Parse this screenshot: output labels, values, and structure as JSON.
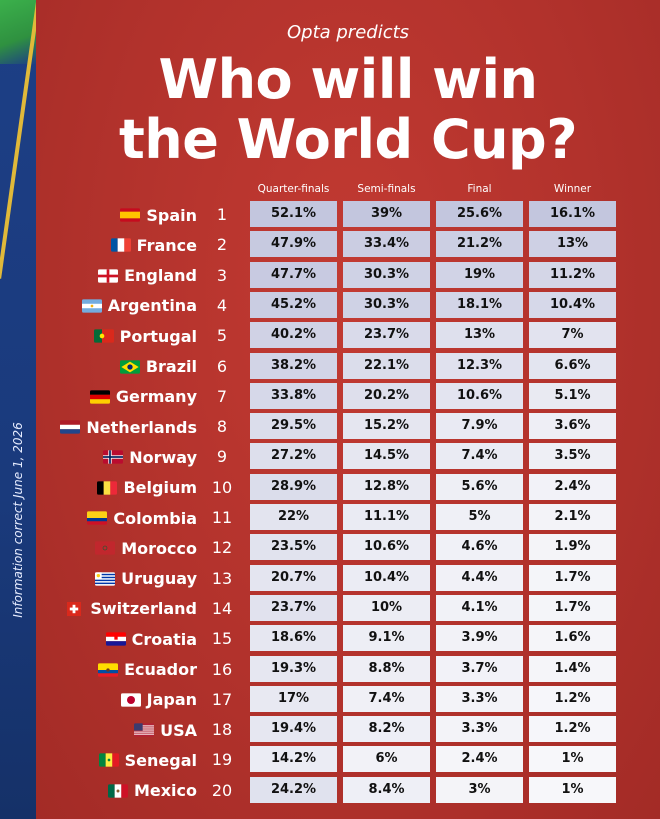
{
  "subtitle": "Opta predicts",
  "title_line1": "Who will win",
  "title_line2": "the World Cup?",
  "side_note": "Information correct June 1, 2026",
  "columns": [
    "Quarter-finals",
    "Semi-finals",
    "Final",
    "Winner"
  ],
  "colors": {
    "background": "#b8352f",
    "stripe": "#1d3f86",
    "text": "#ffffff"
  },
  "rows": [
    {
      "country": "Spain",
      "rank": "1",
      "flag": "spain-flag-icon",
      "values": [
        "52.1%",
        "39%",
        "25.6%",
        "16.1%"
      ]
    },
    {
      "country": "France",
      "rank": "2",
      "flag": "france-flag-icon",
      "values": [
        "47.9%",
        "33.4%",
        "21.2%",
        "13%"
      ]
    },
    {
      "country": "England",
      "rank": "3",
      "flag": "england-flag-icon",
      "values": [
        "47.7%",
        "30.3%",
        "19%",
        "11.2%"
      ]
    },
    {
      "country": "Argentina",
      "rank": "4",
      "flag": "argentina-flag-icon",
      "values": [
        "45.2%",
        "30.3%",
        "18.1%",
        "10.4%"
      ]
    },
    {
      "country": "Portugal",
      "rank": "5",
      "flag": "portugal-flag-icon",
      "values": [
        "40.2%",
        "23.7%",
        "13%",
        "7%"
      ]
    },
    {
      "country": "Brazil",
      "rank": "6",
      "flag": "brazil-flag-icon",
      "values": [
        "38.2%",
        "22.1%",
        "12.3%",
        "6.6%"
      ]
    },
    {
      "country": "Germany",
      "rank": "7",
      "flag": "germany-flag-icon",
      "values": [
        "33.8%",
        "20.2%",
        "10.6%",
        "5.1%"
      ]
    },
    {
      "country": "Netherlands",
      "rank": "8",
      "flag": "netherlands-flag-icon",
      "values": [
        "29.5%",
        "15.2%",
        "7.9%",
        "3.6%"
      ]
    },
    {
      "country": "Norway",
      "rank": "9",
      "flag": "norway-flag-icon",
      "values": [
        "27.2%",
        "14.5%",
        "7.4%",
        "3.5%"
      ]
    },
    {
      "country": "Belgium",
      "rank": "10",
      "flag": "belgium-flag-icon",
      "values": [
        "28.9%",
        "12.8%",
        "5.6%",
        "2.4%"
      ]
    },
    {
      "country": "Colombia",
      "rank": "11",
      "flag": "colombia-flag-icon",
      "values": [
        "22%",
        "11.1%",
        "5%",
        "2.1%"
      ]
    },
    {
      "country": "Morocco",
      "rank": "12",
      "flag": "morocco-flag-icon",
      "values": [
        "23.5%",
        "10.6%",
        "4.6%",
        "1.9%"
      ]
    },
    {
      "country": "Uruguay",
      "rank": "13",
      "flag": "uruguay-flag-icon",
      "values": [
        "20.7%",
        "10.4%",
        "4.4%",
        "1.7%"
      ]
    },
    {
      "country": "Switzerland",
      "rank": "14",
      "flag": "switzerland-flag-icon",
      "values": [
        "23.7%",
        "10%",
        "4.1%",
        "1.7%"
      ]
    },
    {
      "country": "Croatia",
      "rank": "15",
      "flag": "croatia-flag-icon",
      "values": [
        "18.6%",
        "9.1%",
        "3.9%",
        "1.6%"
      ]
    },
    {
      "country": "Ecuador",
      "rank": "16",
      "flag": "ecuador-flag-icon",
      "values": [
        "19.3%",
        "8.8%",
        "3.7%",
        "1.4%"
      ]
    },
    {
      "country": "Japan",
      "rank": "17",
      "flag": "japan-flag-icon",
      "values": [
        "17%",
        "7.4%",
        "3.3%",
        "1.2%"
      ]
    },
    {
      "country": "USA",
      "rank": "18",
      "flag": "usa-flag-icon",
      "values": [
        "19.4%",
        "8.2%",
        "3.3%",
        "1.2%"
      ]
    },
    {
      "country": "Senegal",
      "rank": "19",
      "flag": "senegal-flag-icon",
      "values": [
        "14.2%",
        "6%",
        "2.4%",
        "1%"
      ]
    },
    {
      "country": "Mexico",
      "rank": "20",
      "flag": "mexico-flag-icon",
      "values": [
        "24.2%",
        "8.4%",
        "3%",
        "1%"
      ]
    }
  ]
}
